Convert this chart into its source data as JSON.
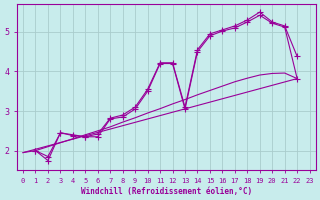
{
  "xlabel": "Windchill (Refroidissement éolien,°C)",
  "bg_color": "#c8ecec",
  "line_color": "#990099",
  "grid_color": "#aacccc",
  "xlim": [
    -0.5,
    23.5
  ],
  "ylim": [
    1.5,
    5.7
  ],
  "xticks": [
    0,
    1,
    2,
    3,
    4,
    5,
    6,
    7,
    8,
    9,
    10,
    11,
    12,
    13,
    14,
    15,
    16,
    17,
    18,
    19,
    20,
    21,
    22,
    23
  ],
  "yticks": [
    2,
    3,
    4,
    5
  ],
  "lines": [
    {
      "x": [
        1,
        2,
        3,
        4,
        5,
        6,
        7,
        8,
        9,
        10,
        11,
        12,
        13,
        14,
        15,
        16,
        17,
        18,
        19,
        20,
        21,
        22
      ],
      "y": [
        2.0,
        1.85,
        2.45,
        2.4,
        2.35,
        2.42,
        2.82,
        2.9,
        3.1,
        3.55,
        4.22,
        4.22,
        3.1,
        4.55,
        4.95,
        5.05,
        5.15,
        5.3,
        5.5,
        5.25,
        5.15,
        4.38
      ],
      "marker": true
    },
    {
      "x": [
        1,
        2,
        3,
        4,
        5,
        6,
        7,
        8,
        9,
        10,
        11,
        12,
        13,
        14,
        15,
        16,
        17,
        18,
        19,
        20,
        21,
        22
      ],
      "y": [
        2.0,
        1.75,
        2.45,
        2.38,
        2.35,
        2.35,
        2.8,
        2.85,
        3.05,
        3.5,
        4.2,
        4.2,
        3.05,
        4.5,
        4.9,
        5.02,
        5.1,
        5.25,
        5.42,
        5.22,
        5.12,
        3.82
      ],
      "marker": true
    },
    {
      "x": [
        0,
        1,
        2,
        3,
        4,
        5,
        6,
        7,
        8,
        9,
        10,
        11,
        12,
        13,
        14,
        15,
        16,
        17,
        18,
        19,
        20,
        21,
        22
      ],
      "y": [
        1.95,
        2.0,
        2.1,
        2.2,
        2.3,
        2.4,
        2.5,
        2.6,
        2.72,
        2.83,
        2.95,
        3.06,
        3.18,
        3.29,
        3.41,
        3.52,
        3.63,
        3.74,
        3.83,
        3.91,
        3.95,
        3.96,
        3.82
      ],
      "marker": false
    },
    {
      "x": [
        0,
        22
      ],
      "y": [
        1.95,
        3.82
      ],
      "marker": false
    }
  ]
}
